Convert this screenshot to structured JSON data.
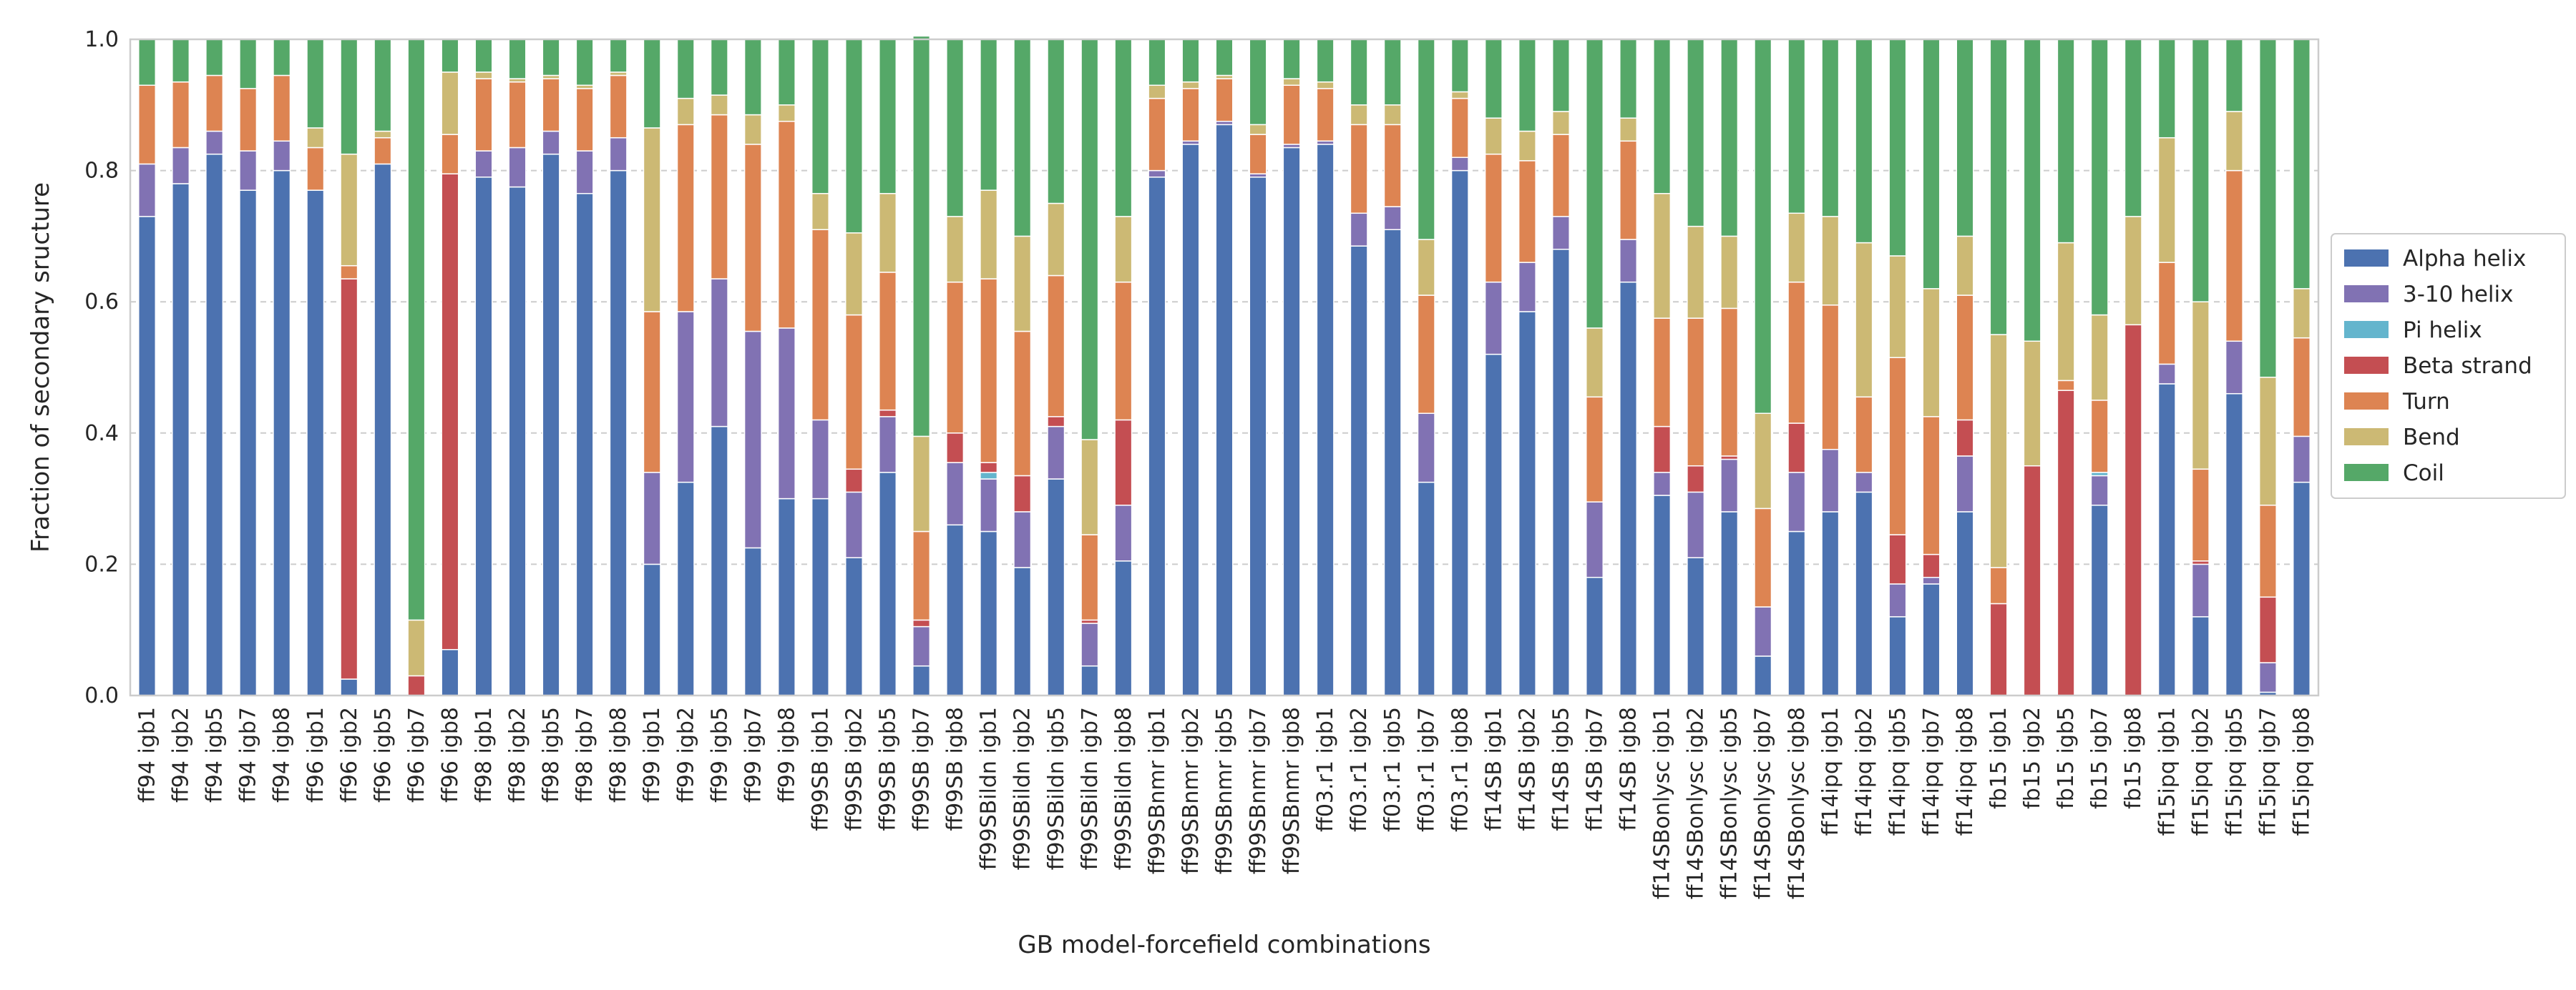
{
  "chart_data": {
    "type": "bar",
    "stacked": true,
    "xlabel": "GB model-forcefield combinations",
    "ylabel": "Fraction of secondary sructure",
    "ylim": [
      0,
      1
    ],
    "yticks": [
      "0.0",
      "0.2",
      "0.4",
      "0.6",
      "0.8",
      "1.0"
    ],
    "grid": "y-dashed",
    "legend_position": "right",
    "categories": [
      "ff94 igb1",
      "ff94 igb2",
      "ff94 igb5",
      "ff94 igb7",
      "ff94 igb8",
      "ff96 igb1",
      "ff96 igb2",
      "ff96 igb5",
      "ff96 igb7",
      "ff96 igb8",
      "ff98 igb1",
      "ff98 igb2",
      "ff98 igb5",
      "ff98 igb7",
      "ff98 igb8",
      "ff99 igb1",
      "ff99 igb2",
      "ff99 igb5",
      "ff99 igb7",
      "ff99 igb8",
      "ff99SB igb1",
      "ff99SB igb2",
      "ff99SB igb5",
      "ff99SB igb7",
      "ff99SB igb8",
      "ff99SBildn igb1",
      "ff99SBildn igb2",
      "ff99SBildn igb5",
      "ff99SBildn igb7",
      "ff99SBildn igb8",
      "ff99SBnmr igb1",
      "ff99SBnmr igb2",
      "ff99SBnmr igb5",
      "ff99SBnmr igb7",
      "ff99SBnmr igb8",
      "ff03.r1 igb1",
      "ff03.r1 igb2",
      "ff03.r1 igb5",
      "ff03.r1 igb7",
      "ff03.r1 igb8",
      "ff14SB igb1",
      "ff14SB igb2",
      "ff14SB igb5",
      "ff14SB igb7",
      "ff14SB igb8",
      "ff14SBonlysc igb1",
      "ff14SBonlysc igb2",
      "ff14SBonlysc igb5",
      "ff14SBonlysc igb7",
      "ff14SBonlysc igb8",
      "ff14ipq igb1",
      "ff14ipq igb2",
      "ff14ipq igb5",
      "ff14ipq igb7",
      "ff14ipq igb8",
      "fb15 igb1",
      "fb15 igb2",
      "fb15 igb5",
      "fb15 igb7",
      "fb15 igb8",
      "ff15ipq igb1",
      "ff15ipq igb2",
      "ff15ipq igb5",
      "ff15ipq igb7",
      "ff15ipq igb8"
    ],
    "series": [
      {
        "name": "Alpha helix",
        "color": "#4c72b0",
        "values": [
          0.73,
          0.78,
          0.825,
          0.77,
          0.8,
          0.77,
          0.025,
          0.81,
          0.0,
          0.07,
          0.79,
          0.775,
          0.825,
          0.765,
          0.8,
          0.2,
          0.325,
          0.41,
          0.225,
          0.3,
          0.3,
          0.21,
          0.34,
          0.045,
          0.26,
          0.25,
          0.195,
          0.33,
          0.045,
          0.205,
          0.79,
          0.84,
          0.87,
          0.79,
          0.835,
          0.84,
          0.685,
          0.71,
          0.325,
          0.8,
          0.52,
          0.585,
          0.68,
          0.18,
          0.63,
          0.305,
          0.21,
          0.28,
          0.06,
          0.25,
          0.28,
          0.31,
          0.12,
          0.17,
          0.28,
          0.0,
          0.0,
          0.0,
          0.29,
          0.0,
          0.475,
          0.12,
          0.46,
          0.005,
          0.325
        ]
      },
      {
        "name": "3-10 helix",
        "color": "#8172b3",
        "values": [
          0.08,
          0.055,
          0.035,
          0.06,
          0.045,
          0.0,
          0.0,
          0.0,
          0.0,
          0.0,
          0.04,
          0.06,
          0.035,
          0.065,
          0.05,
          0.14,
          0.26,
          0.225,
          0.33,
          0.26,
          0.12,
          0.1,
          0.085,
          0.06,
          0.095,
          0.08,
          0.085,
          0.08,
          0.065,
          0.085,
          0.01,
          0.005,
          0.005,
          0.005,
          0.005,
          0.005,
          0.05,
          0.035,
          0.105,
          0.02,
          0.11,
          0.075,
          0.05,
          0.115,
          0.065,
          0.035,
          0.1,
          0.08,
          0.075,
          0.09,
          0.095,
          0.03,
          0.05,
          0.01,
          0.085,
          0.0,
          0.0,
          0.0,
          0.045,
          0.0,
          0.03,
          0.08,
          0.08,
          0.045,
          0.07
        ]
      },
      {
        "name": "Pi helix",
        "color": "#64b5cd",
        "values": [
          0,
          0,
          0,
          0,
          0,
          0,
          0,
          0,
          0,
          0,
          0,
          0,
          0,
          0,
          0,
          0,
          0,
          0,
          0,
          0,
          0,
          0,
          0,
          0,
          0,
          0.01,
          0,
          0,
          0,
          0,
          0,
          0,
          0,
          0,
          0,
          0,
          0,
          0,
          0,
          0,
          0,
          0,
          0,
          0,
          0,
          0,
          0,
          0,
          0,
          0,
          0,
          0,
          0,
          0,
          0,
          0,
          0,
          0,
          0.005,
          0,
          0,
          0,
          0,
          0,
          0
        ]
      },
      {
        "name": "Beta strand",
        "color": "#c44e52",
        "values": [
          0,
          0,
          0,
          0,
          0,
          0,
          0.61,
          0,
          0.03,
          0.725,
          0,
          0,
          0,
          0,
          0,
          0,
          0,
          0,
          0,
          0,
          0,
          0.035,
          0.01,
          0.01,
          0.045,
          0.015,
          0.055,
          0.015,
          0.005,
          0.13,
          0,
          0,
          0,
          0,
          0,
          0,
          0,
          0,
          0,
          0,
          0,
          0,
          0,
          0,
          0,
          0.07,
          0.04,
          0.005,
          0,
          0.075,
          0,
          0,
          0.075,
          0.035,
          0.055,
          0.14,
          0.35,
          0.465,
          0,
          0.565,
          0,
          0.005,
          0,
          0.1,
          0
        ]
      },
      {
        "name": "Turn",
        "color": "#dd8452",
        "values": [
          0.12,
          0.1,
          0.085,
          0.095,
          0.1,
          0.065,
          0.02,
          0.04,
          0.0,
          0.06,
          0.11,
          0.1,
          0.08,
          0.095,
          0.095,
          0.245,
          0.285,
          0.25,
          0.285,
          0.315,
          0.29,
          0.235,
          0.21,
          0.135,
          0.23,
          0.28,
          0.22,
          0.215,
          0.13,
          0.21,
          0.11,
          0.08,
          0.065,
          0.06,
          0.09,
          0.08,
          0.135,
          0.125,
          0.18,
          0.09,
          0.195,
          0.155,
          0.125,
          0.16,
          0.15,
          0.165,
          0.225,
          0.225,
          0.15,
          0.215,
          0.22,
          0.115,
          0.27,
          0.21,
          0.19,
          0.055,
          0.0,
          0.015,
          0.11,
          0.0,
          0.155,
          0.14,
          0.26,
          0.14,
          0.15
        ]
      },
      {
        "name": "Bend",
        "color": "#ccb974",
        "values": [
          0,
          0,
          0,
          0,
          0,
          0.03,
          0.17,
          0.01,
          0.085,
          0.095,
          0.01,
          0.005,
          0.005,
          0.005,
          0.005,
          0.28,
          0.04,
          0.03,
          0.045,
          0.025,
          0.055,
          0.125,
          0.12,
          0.145,
          0.1,
          0.135,
          0.145,
          0.11,
          0.145,
          0.1,
          0.02,
          0.01,
          0.005,
          0.015,
          0.01,
          0.01,
          0.03,
          0.03,
          0.085,
          0.01,
          0.055,
          0.045,
          0.035,
          0.105,
          0.035,
          0.19,
          0.14,
          0.11,
          0.145,
          0.105,
          0.135,
          0.235,
          0.155,
          0.195,
          0.09,
          0.355,
          0.19,
          0.21,
          0.13,
          0.165,
          0.19,
          0.255,
          0.09,
          0.195,
          0.075
        ]
      },
      {
        "name": "Coil",
        "color": "#55a868",
        "values": [
          0.07,
          0.065,
          0.055,
          0.075,
          0.055,
          0.135,
          0.175,
          0.14,
          0.885,
          0.05,
          0.05,
          0.06,
          0.055,
          0.07,
          0.05,
          0.135,
          0.09,
          0.085,
          0.115,
          0.1,
          0.235,
          0.295,
          0.235,
          0.61,
          0.27,
          0.23,
          0.3,
          0.25,
          0.61,
          0.27,
          0.07,
          0.065,
          0.055,
          0.13,
          0.06,
          0.065,
          0.1,
          0.1,
          0.305,
          0.08,
          0.12,
          0.14,
          0.11,
          0.44,
          0.12,
          0.235,
          0.285,
          0.3,
          0.57,
          0.265,
          0.27,
          0.31,
          0.33,
          0.38,
          0.3,
          0.45,
          0.46,
          0.31,
          0.42,
          0.27,
          0.15,
          0.4,
          0.11,
          0.515,
          0.38
        ]
      }
    ]
  }
}
